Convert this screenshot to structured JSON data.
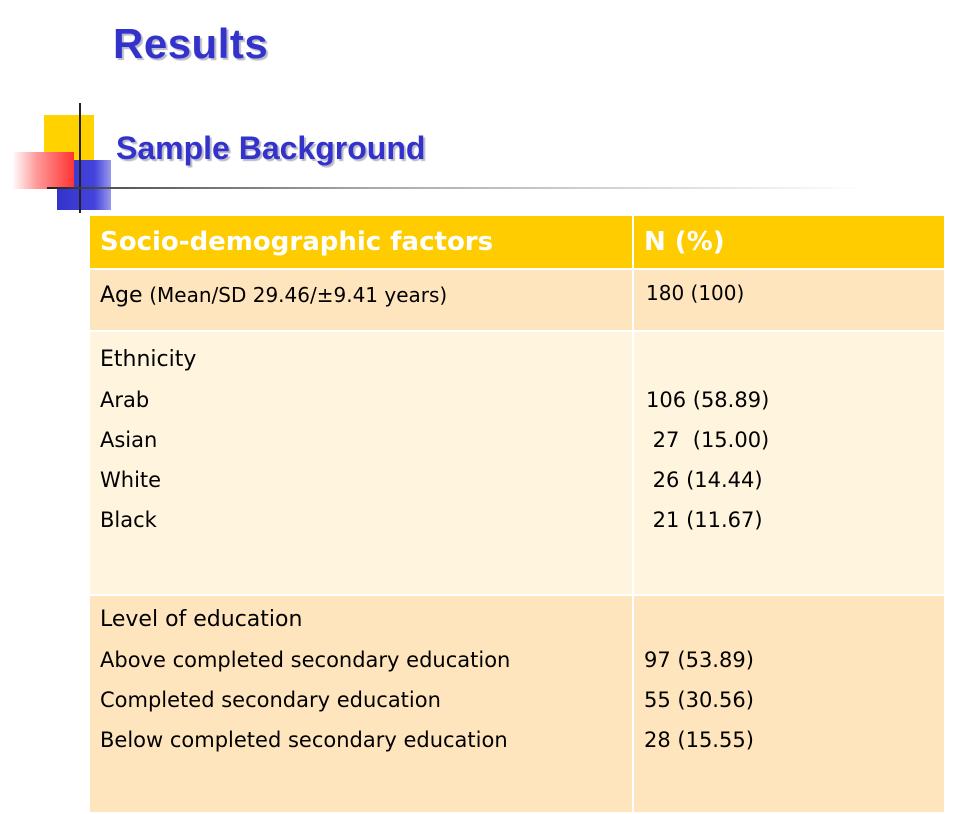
{
  "slide": {
    "title": "Results",
    "subtitle": "Sample Background"
  },
  "table": {
    "headers": [
      "Socio-demographic factors",
      "N (%)"
    ],
    "age": {
      "label": "Age",
      "detail": "(Mean/SD 29.46/±9.41 years)",
      "value": "180 (100)"
    },
    "ethnicity": {
      "label": "Ethnicity",
      "items": [
        "Arab",
        "Asian",
        "White",
        "Black"
      ],
      "values": [
        "106 (58.89)",
        " 27  (15.00)",
        " 26 (14.44)",
        " 21 (11.67)"
      ]
    },
    "education": {
      "label": "Level of education",
      "items": [
        "Above completed secondary education",
        "Completed secondary education",
        "Below completed secondary education"
      ],
      "values": [
        "97 (53.89)",
        "55 (30.56)",
        "28 (15.55)"
      ]
    }
  },
  "colors": {
    "title": "#3333cc",
    "header_bg": "#ffcc00",
    "row_dark": "#ffe5bd",
    "row_light": "#fff4de"
  }
}
